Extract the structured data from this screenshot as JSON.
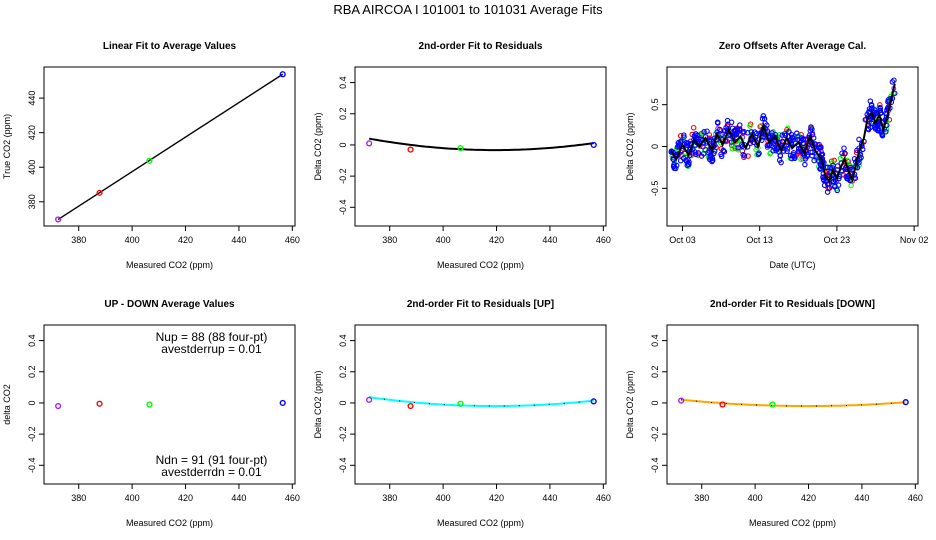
{
  "page_title": "RBA   AIRCOA I   101001 to 101031   Average Fits",
  "colors": {
    "tank1": "#a020f0",
    "tank2": "#ff0000",
    "tank3": "#00ff00",
    "tank4": "#0000ff",
    "fit_main": "#000000",
    "fit_up": "#00ffff",
    "fit_down": "#ffa500"
  },
  "chart_data": [
    {
      "id": "linear",
      "type": "scatter",
      "title": "Linear Fit to Average Values",
      "xlabel": "Measured CO2 (ppm)",
      "ylabel": "True CO2 (ppm)",
      "xlim": [
        367,
        461
      ],
      "ylim": [
        366,
        458
      ],
      "xticks": [
        380,
        400,
        420,
        440,
        460
      ],
      "yticks": [
        380,
        400,
        420,
        440
      ],
      "points": [
        {
          "x": 372.3,
          "y": 369.8,
          "color": "#a020f0"
        },
        {
          "x": 387.8,
          "y": 385.2,
          "color": "#ff0000"
        },
        {
          "x": 406.5,
          "y": 403.7,
          "color": "#00ff00"
        },
        {
          "x": 456.4,
          "y": 453.8,
          "color": "#0000ff"
        }
      ],
      "fit_line": {
        "x": [
          372.3,
          456.4
        ],
        "y": [
          369.8,
          453.8
        ],
        "color": "#000000"
      }
    },
    {
      "id": "resid",
      "type": "scatter",
      "title": "2nd-order Fit to Residuals",
      "xlabel": "Measured CO2 (ppm)",
      "ylabel": "Delta CO2 (ppm)",
      "xlim": [
        367,
        461
      ],
      "ylim": [
        -0.52,
        0.5
      ],
      "xticks": [
        380,
        400,
        420,
        440,
        460
      ],
      "yticks": [
        -0.4,
        -0.2,
        0.0,
        0.2,
        0.4
      ],
      "points": [
        {
          "x": 372.3,
          "y": 0.01,
          "color": "#a020f0"
        },
        {
          "x": 387.8,
          "y": -0.03,
          "color": "#ff0000"
        },
        {
          "x": 406.5,
          "y": -0.02,
          "color": "#00ff00"
        },
        {
          "x": 456.4,
          "y": 0.0,
          "color": "#0000ff"
        }
      ],
      "fit_curve": {
        "x0": 372.3,
        "x1": 456.4,
        "xmin": 419.5,
        "ymin": -0.033,
        "yend": 0.012,
        "color": "#000000"
      }
    },
    {
      "id": "zero",
      "type": "line",
      "title": "Zero Offsets After Average Cal.",
      "xlabel": "Date (UTC)",
      "ylabel": "Delta CO2 (ppm)",
      "xlim": [
        0,
        32.5
      ],
      "ylim": [
        -0.95,
        0.95
      ],
      "xticks": [
        {
          "v": 2,
          "label": "Oct 03"
        },
        {
          "v": 12,
          "label": "Oct 13"
        },
        {
          "v": 22,
          "label": "Oct 23"
        },
        {
          "v": 32,
          "label": "Nov 02"
        }
      ],
      "yticks": [
        -0.5,
        0.0,
        0.5
      ],
      "mean_series": [
        [
          0.5,
          -0.05
        ],
        [
          1.2,
          -0.15
        ],
        [
          2.0,
          0.02
        ],
        [
          2.8,
          -0.1
        ],
        [
          3.5,
          0.08
        ],
        [
          4.2,
          0.0
        ],
        [
          5.0,
          0.1
        ],
        [
          5.8,
          -0.05
        ],
        [
          6.5,
          0.15
        ],
        [
          7.2,
          0.02
        ],
        [
          8.0,
          0.2
        ],
        [
          8.8,
          0.05
        ],
        [
          9.5,
          0.12
        ],
        [
          10.2,
          -0.02
        ],
        [
          11.0,
          0.15
        ],
        [
          11.8,
          0.0
        ],
        [
          12.5,
          0.25
        ],
        [
          13.2,
          0.05
        ],
        [
          14.0,
          0.12
        ],
        [
          14.8,
          -0.05
        ],
        [
          15.5,
          0.1
        ],
        [
          16.2,
          -0.02
        ],
        [
          17.0,
          0.05
        ],
        [
          17.8,
          -0.08
        ],
        [
          18.5,
          0.12
        ],
        [
          19.2,
          -0.05
        ],
        [
          20.0,
          -0.15
        ],
        [
          20.5,
          -0.35
        ],
        [
          21.0,
          -0.42
        ],
        [
          21.5,
          -0.28
        ],
        [
          22.0,
          -0.38
        ],
        [
          22.5,
          -0.25
        ],
        [
          23.0,
          -0.15
        ],
        [
          23.5,
          -0.3
        ],
        [
          24.0,
          -0.4
        ],
        [
          24.5,
          -0.2
        ],
        [
          25.0,
          -0.02
        ],
        [
          25.5,
          0.1
        ],
        [
          26.0,
          0.35
        ],
        [
          26.5,
          0.4
        ],
        [
          27.0,
          0.28
        ],
        [
          27.5,
          0.38
        ],
        [
          28.0,
          0.2
        ],
        [
          28.5,
          0.35
        ],
        [
          29.0,
          0.55
        ],
        [
          29.5,
          0.75
        ]
      ],
      "series_names": [
        "tank1",
        "tank2",
        "tank3",
        "tank4"
      ]
    },
    {
      "id": "updown",
      "type": "scatter",
      "title": "UP - DOWN Average Values",
      "xlabel": "Measured CO2 (ppm)",
      "ylabel": "delta CO2",
      "xlim": [
        367,
        461
      ],
      "ylim": [
        -0.52,
        0.5
      ],
      "xticks": [
        380,
        400,
        420,
        440,
        460
      ],
      "yticks": [
        -0.4,
        -0.2,
        0.0,
        0.2,
        0.4
      ],
      "points": [
        {
          "x": 372.3,
          "y": -0.02,
          "color": "#a020f0"
        },
        {
          "x": 387.8,
          "y": -0.005,
          "color": "#ff0000"
        },
        {
          "x": 406.5,
          "y": -0.01,
          "color": "#00ff00"
        },
        {
          "x": 456.4,
          "y": 0.0,
          "color": "#0000ff"
        }
      ],
      "annotations": {
        "nup": "Nup = 88 (88 four-pt)",
        "avestderrup": "avestderrup =  0.01",
        "ndn": "Ndn = 91 (91 four-pt)",
        "avestderrdn": "avestderrdn =  0.01"
      }
    },
    {
      "id": "residup",
      "type": "scatter",
      "title": "2nd-order Fit to Residuals [UP]",
      "xlabel": "Measured CO2 (ppm)",
      "ylabel": "Delta CO2 (ppm)",
      "xlim": [
        367,
        461
      ],
      "ylim": [
        -0.52,
        0.5
      ],
      "xticks": [
        380,
        400,
        420,
        440,
        460
      ],
      "yticks": [
        -0.4,
        -0.2,
        0.0,
        0.2,
        0.4
      ],
      "points": [
        {
          "x": 372.3,
          "y": 0.02,
          "color": "#a020f0"
        },
        {
          "x": 387.8,
          "y": -0.02,
          "color": "#ff0000"
        },
        {
          "x": 406.5,
          "y": -0.005,
          "color": "#00ff00"
        },
        {
          "x": 456.4,
          "y": 0.01,
          "color": "#0000ff"
        }
      ],
      "fit_curve": {
        "x0": 372.3,
        "x1": 456.4,
        "xmin": 419.5,
        "ymin": -0.02,
        "yend": 0.015,
        "color": "#00ffff"
      }
    },
    {
      "id": "residdown",
      "type": "scatter",
      "title": "2nd-order Fit to Residuals [DOWN]",
      "xlabel": "Measured CO2 (ppm)",
      "ylabel": "Delta CO2 (ppm)",
      "xlim": [
        367,
        461
      ],
      "ylim": [
        -0.52,
        0.5
      ],
      "xticks": [
        380,
        400,
        420,
        440,
        460
      ],
      "yticks": [
        -0.4,
        -0.2,
        0.0,
        0.2,
        0.4
      ],
      "points": [
        {
          "x": 372.3,
          "y": 0.015,
          "color": "#a020f0"
        },
        {
          "x": 387.8,
          "y": -0.01,
          "color": "#ff0000"
        },
        {
          "x": 406.5,
          "y": -0.01,
          "color": "#00ff00"
        },
        {
          "x": 456.4,
          "y": 0.005,
          "color": "#0000ff"
        }
      ],
      "fit_curve": {
        "x0": 372.3,
        "x1": 456.4,
        "xmin": 419.5,
        "ymin": -0.02,
        "yend": 0.005,
        "color": "#ffa500"
      }
    }
  ]
}
